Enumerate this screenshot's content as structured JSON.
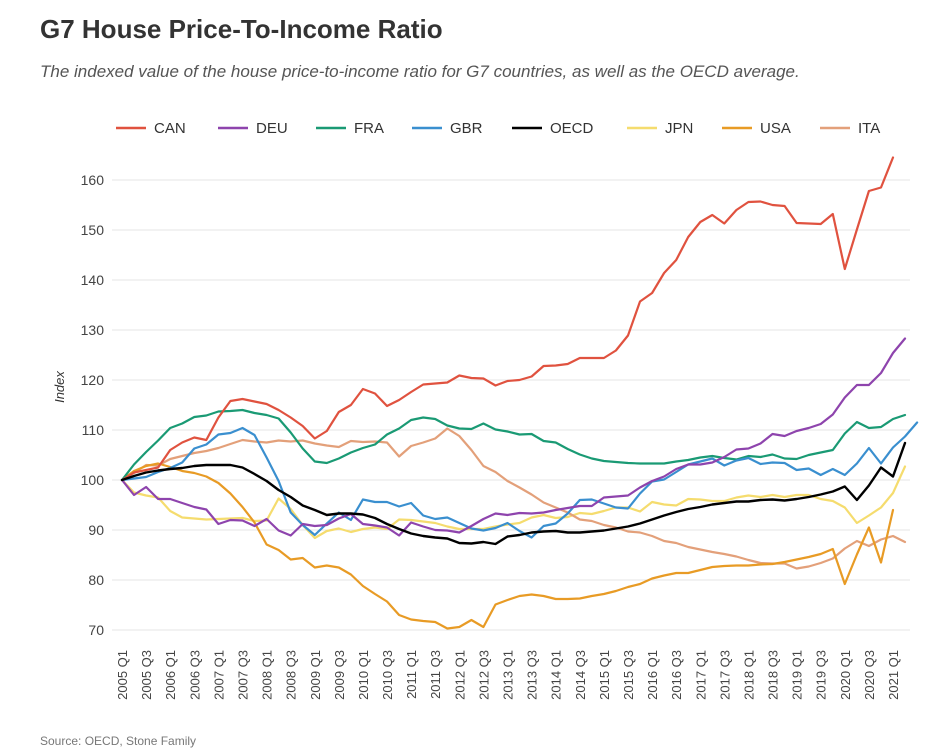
{
  "header": {
    "title": "G7 House Price-To-Income Ratio",
    "subtitle": "The indexed value of the house price-to-income ratio for G7 countries, as well as the OECD average."
  },
  "chart_data": {
    "type": "line",
    "ylabel": "Index",
    "xlabel": "",
    "ylim": [
      68,
      166
    ],
    "yticks": [
      70,
      80,
      90,
      100,
      110,
      120,
      130,
      140,
      150,
      160
    ],
    "grid": "horizontal",
    "legend_position": "top",
    "x_tick_labels": [
      "2005 Q1",
      "2005 Q3",
      "2006 Q1",
      "2006 Q3",
      "2007 Q1",
      "2007 Q3",
      "2008 Q1",
      "2008 Q3",
      "2009 Q1",
      "2009 Q3",
      "2010 Q1",
      "2010 Q3",
      "2011 Q1",
      "2011 Q3",
      "2012 Q1",
      "2012 Q3",
      "2013 Q1",
      "2013 Q3",
      "2014 Q1",
      "2014 Q3",
      "2015 Q1",
      "2015 Q3",
      "2016 Q1",
      "2016 Q3",
      "2017 Q1",
      "2017 Q3",
      "2018 Q1",
      "2018 Q3",
      "2019 Q1",
      "2019 Q3",
      "2020 Q1",
      "2020 Q3",
      "2021 Q1"
    ],
    "series": [
      {
        "name": "CAN",
        "color": "#e0523f",
        "values": [
          100,
          101.5,
          102,
          102.5,
          106,
          107.5,
          108.5,
          108,
          112.5,
          115.8,
          116.2,
          115.7,
          115.2,
          114,
          112.5,
          110.8,
          108.3,
          109.8,
          113.6,
          115,
          118.2,
          117.3,
          114.8,
          116,
          117.6,
          119.1,
          119.3,
          119.5,
          120.9,
          120.4,
          120.3,
          118.9,
          119.8,
          120,
          120.7,
          122.8,
          122.9,
          123.2,
          124.4,
          124.4,
          124.4,
          125.9,
          128.9,
          135.7,
          137.4,
          141.4,
          144,
          148.6,
          151.6,
          153,
          151.3,
          154,
          155.6,
          155.7,
          155,
          154.8,
          151.4,
          151.3,
          151.2,
          153.2,
          142.2,
          150.1,
          157.8,
          158.5,
          164.5
        ]
      },
      {
        "name": "DEU",
        "color": "#8e44ad",
        "values": [
          100,
          97,
          98.6,
          96.2,
          96.2,
          95.4,
          94.6,
          94.1,
          91.2,
          92,
          91.9,
          90.8,
          92.2,
          89.9,
          88.9,
          91.2,
          90.8,
          91,
          92.3,
          93.2,
          91.2,
          90.9,
          90.5,
          88.9,
          91.5,
          90.7,
          90,
          89.9,
          89.5,
          90.8,
          92.2,
          93.3,
          93,
          93.4,
          93.3,
          93.5,
          94,
          94.4,
          94.8,
          94.8,
          96.5,
          96.7,
          96.9,
          98.5,
          99.8,
          100.7,
          102.2,
          103.1,
          103.1,
          103.5,
          104.6,
          106.1,
          106.3,
          107.3,
          109.2,
          108.8,
          109.8,
          110.4,
          111.2,
          113.1,
          116.5,
          119,
          119,
          121.4,
          125.4,
          128.3
        ]
      },
      {
        "name": "FRA",
        "color": "#1a9a74",
        "values": [
          100,
          103.1,
          105.6,
          107.9,
          110.4,
          111.3,
          112.6,
          112.9,
          113.7,
          113.8,
          114,
          113.4,
          113,
          112.3,
          109.5,
          106.3,
          103.7,
          103.4,
          104.3,
          105.5,
          106.4,
          107.1,
          109.1,
          110.3,
          112,
          112.5,
          112.2,
          110.9,
          110.3,
          110.2,
          111.3,
          110.1,
          109.7,
          109.1,
          109.2,
          107.8,
          107.5,
          106.2,
          105.1,
          104.3,
          103.8,
          103.6,
          103.4,
          103.3,
          103.3,
          103.3,
          103.7,
          104,
          104.5,
          104.8,
          104.4,
          104.1,
          104.8,
          104.6,
          105.1,
          104.3,
          104.2,
          105,
          105.5,
          106,
          109.3,
          111.6,
          110.4,
          110.6,
          112.2,
          113
        ]
      },
      {
        "name": "GBR",
        "color": "#3a8fcf",
        "values": [
          100,
          100.3,
          100.6,
          101.6,
          102.4,
          103.5,
          106.3,
          107.1,
          109.1,
          109.4,
          110.4,
          109,
          104.5,
          99.8,
          93.5,
          91,
          89,
          91.3,
          93.5,
          92,
          96.1,
          95.6,
          95.6,
          94.7,
          95.4,
          92.9,
          92.2,
          92.5,
          91.4,
          90.3,
          89.9,
          90.4,
          91.4,
          89.8,
          88.5,
          90.8,
          91.3,
          93.3,
          96,
          96.1,
          95.3,
          94.5,
          94.3,
          97.3,
          99.7,
          100.1,
          101.6,
          103.1,
          103.7,
          104.3,
          102.9,
          103.9,
          104.4,
          103.2,
          103.5,
          103.4,
          102,
          102.3,
          101,
          102.2,
          101,
          103.3,
          106.4,
          103.3,
          106.5,
          108.7,
          111.5
        ]
      },
      {
        "name": "OECD",
        "color": "#000000",
        "values": [
          100,
          100.8,
          101.5,
          101.9,
          102.2,
          102.4,
          102.8,
          103,
          103,
          103,
          102.5,
          101.2,
          99.8,
          98,
          96.6,
          94.9,
          94,
          93,
          93.3,
          93.3,
          93.1,
          92.4,
          91.2,
          90.2,
          89.3,
          88.8,
          88.5,
          88.3,
          87.4,
          87.3,
          87.6,
          87.2,
          88.7,
          89,
          89.5,
          89.7,
          89.8,
          89.5,
          89.5,
          89.7,
          89.9,
          90.3,
          90.7,
          91.3,
          92.1,
          92.9,
          93.6,
          94.2,
          94.6,
          95.1,
          95.4,
          95.7,
          95.7,
          96,
          96.1,
          95.9,
          96.2,
          96.6,
          97.1,
          97.7,
          98.7,
          96,
          98.9,
          102.5,
          100.7,
          107.4
        ]
      },
      {
        "name": "JPN",
        "color": "#f5dc6e",
        "values": [
          100,
          97.5,
          96.9,
          96.5,
          93.8,
          92.5,
          92.3,
          92.1,
          92.2,
          92.3,
          92.4,
          91.8,
          91.9,
          96.3,
          94.2,
          91,
          88.4,
          89.8,
          90.3,
          89.6,
          90.2,
          90.5,
          90.2,
          92.1,
          92,
          91.7,
          91.4,
          90.7,
          90.2,
          90.2,
          90.2,
          90.7,
          91.1,
          91.4,
          92.5,
          93,
          92.4,
          92.6,
          93.4,
          93.2,
          93.8,
          94.5,
          94.5,
          93.7,
          95.6,
          95.1,
          94.9,
          96.2,
          96.1,
          95.8,
          95.8,
          96.5,
          96.9,
          96.6,
          97,
          96.6,
          97,
          97,
          96.2,
          95.8,
          94.5,
          91.4,
          92.9,
          94.5,
          97.4,
          102.7
        ]
      },
      {
        "name": "USA",
        "color": "#e89b25",
        "values": [
          100,
          101.8,
          102.8,
          103.3,
          102.6,
          101.8,
          101.4,
          100.7,
          99.4,
          97.3,
          94.6,
          91.5,
          87.1,
          86,
          84.1,
          84.4,
          82.5,
          82.9,
          82.5,
          81.1,
          78.8,
          77.2,
          75.7,
          73,
          72.1,
          71.8,
          71.6,
          70.3,
          70.6,
          72,
          70.6,
          75.1,
          76,
          76.8,
          77.1,
          76.8,
          76.2,
          76.2,
          76.3,
          76.8,
          77.2,
          77.8,
          78.6,
          79.2,
          80.3,
          80.9,
          81.4,
          81.4,
          82,
          82.6,
          82.8,
          82.9,
          82.9,
          83.1,
          83.2,
          83.6,
          84.1,
          84.6,
          85.2,
          86.2,
          79.2,
          85.1,
          90.5,
          83.5,
          94
        ]
      },
      {
        "name": "ITA",
        "color": "#e3a07a",
        "values": [
          100,
          101.4,
          103,
          102.9,
          104.2,
          104.8,
          105.4,
          105.8,
          106.4,
          107.2,
          108,
          107.7,
          107.5,
          107.9,
          107.7,
          107.9,
          107.3,
          106.9,
          106.6,
          107.8,
          107.6,
          107.7,
          107.5,
          104.7,
          106.8,
          107.5,
          108.3,
          110.3,
          108.8,
          106,
          102.8,
          101.6,
          99.8,
          98.5,
          97.1,
          95.5,
          94.5,
          93.5,
          92.1,
          91.8,
          91,
          90.5,
          89.7,
          89.5,
          88.8,
          87.8,
          87.4,
          86.6,
          86.1,
          85.6,
          85.2,
          84.7,
          84,
          83.4,
          83.3,
          83.3,
          82.3,
          82.7,
          83.4,
          84.3,
          86.3,
          87.8,
          86.8,
          88.1,
          88.8,
          87.6
        ]
      }
    ]
  },
  "footer": {
    "source": "Source: OECD, Stone Family"
  }
}
